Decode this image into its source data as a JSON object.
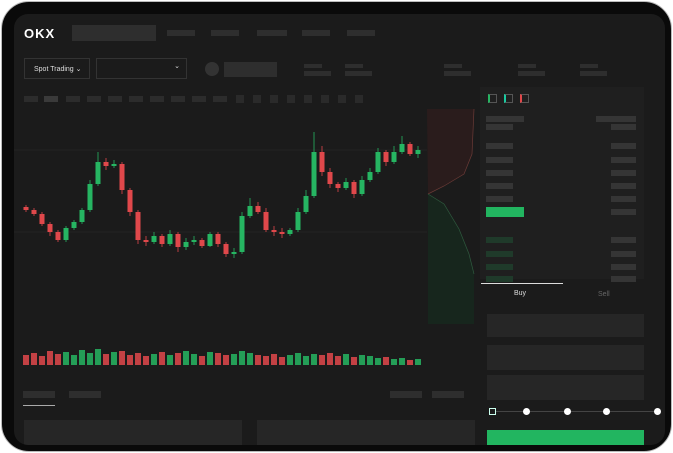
{
  "header": {
    "logo": "OKX"
  },
  "toolbar": {
    "market_select": "Spot Trading",
    "pair_select": ""
  },
  "order_form": {
    "tabs": [
      {
        "label": "Buy",
        "active": true
      },
      {
        "label": "Sell",
        "active": false
      }
    ],
    "slider_percent": 0,
    "slider_stops": 5,
    "submit_color": "#22b560"
  },
  "colors": {
    "up": "#26b562",
    "down": "#e0484b",
    "background": "#1b1b1b"
  },
  "chart_data": {
    "type": "candlestick",
    "ohlc": [
      [
        95,
        92,
        97,
        90
      ],
      [
        92,
        88,
        94,
        86
      ],
      [
        88,
        78,
        90,
        76
      ],
      [
        78,
        70,
        80,
        66
      ],
      [
        70,
        62,
        72,
        60
      ],
      [
        62,
        74,
        76,
        60
      ],
      [
        74,
        80,
        82,
        72
      ],
      [
        80,
        92,
        94,
        78
      ],
      [
        92,
        118,
        122,
        90
      ],
      [
        118,
        140,
        150,
        116
      ],
      [
        140,
        136,
        144,
        132
      ],
      [
        136,
        138,
        142,
        134
      ],
      [
        138,
        112,
        140,
        108
      ],
      [
        112,
        90,
        114,
        86
      ],
      [
        90,
        62,
        92,
        58
      ],
      [
        62,
        60,
        66,
        56
      ],
      [
        60,
        66,
        70,
        58
      ],
      [
        66,
        58,
        68,
        55
      ],
      [
        58,
        68,
        72,
        56
      ],
      [
        68,
        55,
        70,
        50
      ],
      [
        55,
        60,
        64,
        52
      ],
      [
        60,
        62,
        66,
        57
      ],
      [
        62,
        56,
        64,
        54
      ],
      [
        56,
        68,
        70,
        55
      ],
      [
        68,
        58,
        70,
        55
      ],
      [
        58,
        48,
        60,
        45
      ],
      [
        48,
        50,
        54,
        44
      ],
      [
        50,
        86,
        90,
        48
      ],
      [
        86,
        96,
        104,
        84
      ],
      [
        96,
        90,
        100,
        88
      ],
      [
        90,
        72,
        94,
        70
      ],
      [
        72,
        70,
        76,
        66
      ],
      [
        70,
        68,
        74,
        64
      ],
      [
        68,
        72,
        74,
        66
      ],
      [
        72,
        90,
        94,
        70
      ],
      [
        90,
        106,
        112,
        88
      ],
      [
        106,
        150,
        170,
        104
      ],
      [
        150,
        130,
        156,
        126
      ],
      [
        130,
        118,
        134,
        114
      ],
      [
        118,
        114,
        120,
        110
      ],
      [
        114,
        120,
        124,
        112
      ],
      [
        120,
        108,
        122,
        104
      ],
      [
        108,
        122,
        126,
        106
      ],
      [
        122,
        130,
        134,
        120
      ],
      [
        130,
        150,
        154,
        128
      ],
      [
        150,
        140,
        152,
        136
      ],
      [
        140,
        150,
        156,
        138
      ],
      [
        150,
        158,
        166,
        148
      ],
      [
        158,
        148,
        160,
        146
      ],
      [
        148,
        152,
        156,
        144
      ]
    ],
    "volume": [
      10,
      12,
      9,
      14,
      11,
      13,
      10,
      15,
      12,
      16,
      11,
      13,
      14,
      10,
      12,
      9,
      11,
      13,
      10,
      12,
      14,
      11,
      9,
      13,
      12,
      10,
      11,
      14,
      12,
      10,
      9,
      11,
      8,
      10,
      12,
      9,
      11,
      10,
      12,
      9,
      11,
      8,
      10,
      9,
      7,
      8,
      6,
      7,
      5,
      6
    ]
  }
}
